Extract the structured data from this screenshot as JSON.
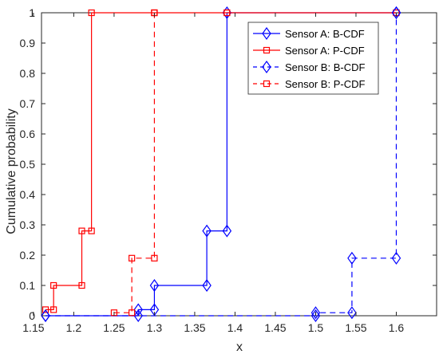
{
  "chart_data": {
    "type": "line",
    "step": true,
    "xlabel": "x",
    "ylabel": "Cumulative probability",
    "xlim": [
      1.16,
      1.65
    ],
    "ylim": [
      0,
      1
    ],
    "xticks": [
      1.15,
      1.2,
      1.25,
      1.3,
      1.35,
      1.4,
      1.45,
      1.5,
      1.55,
      1.6
    ],
    "xtick_labels": [
      "1.15",
      "1.2",
      "1.25",
      "1.3",
      "1.35",
      "1.4",
      "1.45",
      "1.5",
      "1.55",
      "1.6"
    ],
    "yticks": [
      0,
      0.1,
      0.2,
      0.3,
      0.4,
      0.5,
      0.6,
      0.7,
      0.8,
      0.9,
      1
    ],
    "ytick_labels": [
      "0",
      "0.1",
      "0.2",
      "0.3",
      "0.4",
      "0.5",
      "0.6",
      "0.7",
      "0.8",
      "0.9",
      "1"
    ],
    "grid": false,
    "legend_position": "top-right",
    "series": [
      {
        "name": "Sensor A: B-CDF",
        "color": "#0000ff",
        "line_style": "solid",
        "marker": "diamond",
        "x": [
          1.165,
          1.28,
          1.3,
          1.365,
          1.39,
          1.6
        ],
        "y": [
          0,
          0.02,
          0.1,
          0.28,
          1,
          1
        ]
      },
      {
        "name": "Sensor A: P-CDF",
        "color": "#ff0000",
        "line_style": "solid",
        "marker": "square",
        "x": [
          1.165,
          1.175,
          1.21,
          1.222,
          1.3,
          1.39,
          1.6
        ],
        "y": [
          0.02,
          0.1,
          0.28,
          1,
          1,
          1,
          1
        ]
      },
      {
        "name": "Sensor B: B-CDF",
        "color": "#0000ff",
        "line_style": "dashed",
        "marker": "diamond",
        "x": [
          1.165,
          1.5,
          1.545,
          1.6
        ],
        "y": [
          0,
          0.01,
          0.19,
          1
        ]
      },
      {
        "name": "Sensor B: P-CDF",
        "color": "#ff0000",
        "line_style": "dashed",
        "marker": "square",
        "x": [
          1.25,
          1.272,
          1.3
        ],
        "y": [
          0.01,
          0.19,
          1
        ]
      }
    ]
  }
}
